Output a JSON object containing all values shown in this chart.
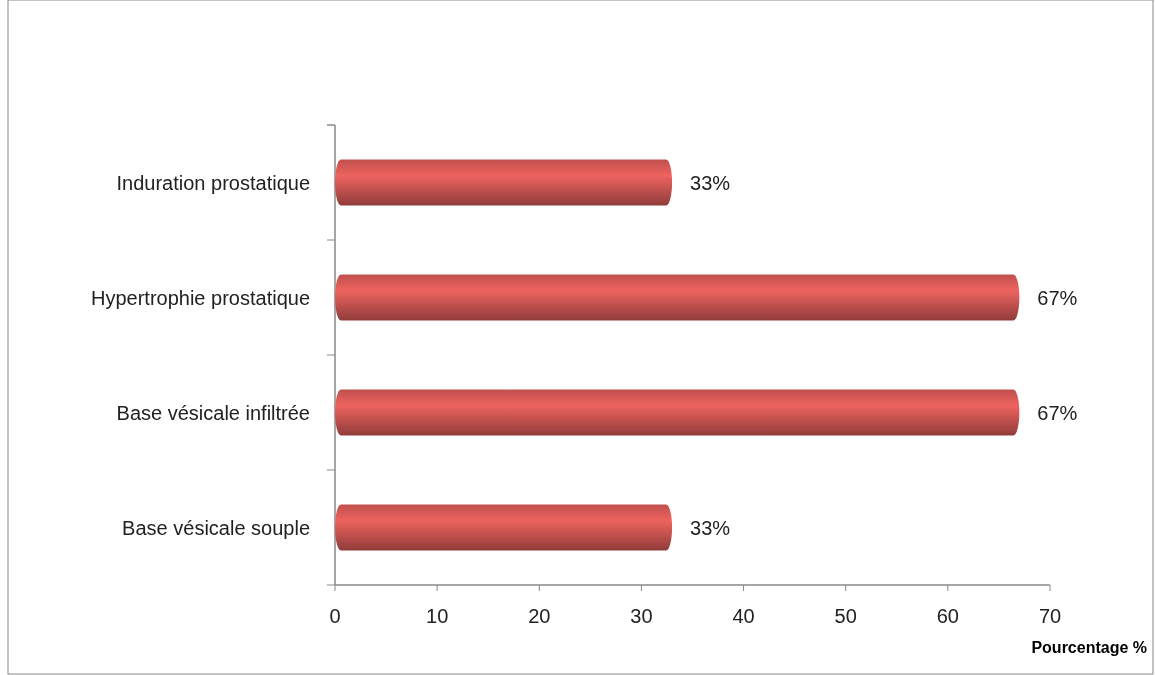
{
  "chart_data": {
    "type": "bar",
    "orientation": "horizontal",
    "categories": [
      "Induration prostatique",
      "Hypertrophie prostatique",
      "Base vésicale infiltrée",
      "Base vésicale souple"
    ],
    "values": [
      33,
      67,
      67,
      33
    ],
    "value_labels": [
      "33%",
      "67%",
      "67%",
      "33%"
    ],
    "color": "#c0504d",
    "xlim": [
      0,
      70
    ],
    "xticks": [
      0,
      10,
      20,
      30,
      40,
      50,
      60,
      70
    ],
    "xlabel": "Pourcentage %",
    "grid": false
  }
}
